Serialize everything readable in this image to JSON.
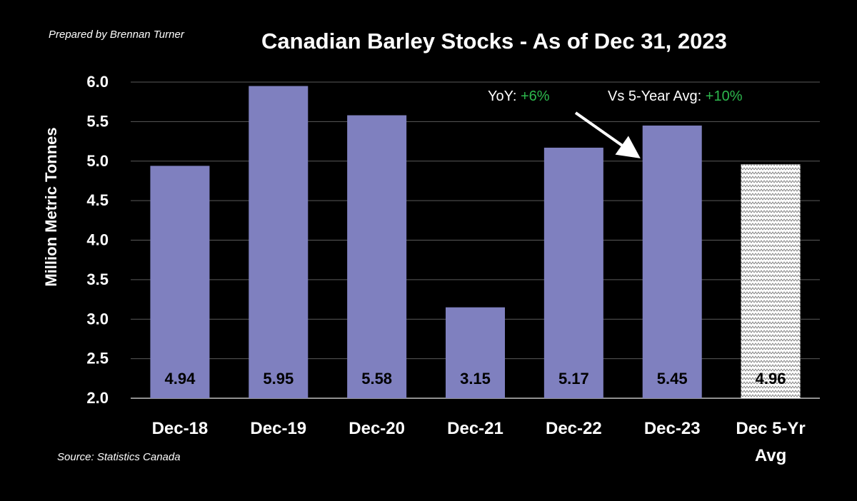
{
  "header": {
    "credit": "Prepared by Brennan Turner",
    "source": "Source: Statistics Canada"
  },
  "annotations": {
    "yoy_label": "YoY: ",
    "yoy_value": "+6%",
    "avg_label": "Vs 5-Year Avg: ",
    "avg_value": "+10%"
  },
  "colors": {
    "bar": "#7f80bf",
    "avg_bar_pattern": "#ffffff",
    "positive": "#2db84d",
    "background": "#000000"
  },
  "chart_data": {
    "type": "bar",
    "title": "Canadian Barley Stocks - As of Dec 31, 2023",
    "xlabel": "",
    "ylabel": "Million Metric Tonnes",
    "ylim": [
      2.0,
      6.0
    ],
    "yticks": [
      "2.0",
      "2.5",
      "3.0",
      "3.5",
      "4.0",
      "4.5",
      "5.0",
      "5.5",
      "6.0"
    ],
    "grid": true,
    "categories": [
      [
        "Dec-18"
      ],
      [
        "Dec-19"
      ],
      [
        "Dec-20"
      ],
      [
        "Dec-21"
      ],
      [
        "Dec-22"
      ],
      [
        "Dec-23"
      ],
      [
        "Dec 5-Yr",
        "Avg"
      ]
    ],
    "values": [
      4.94,
      5.95,
      5.58,
      3.15,
      5.17,
      5.45,
      4.96
    ],
    "data_labels": [
      "4.94",
      "5.95",
      "5.58",
      "3.15",
      "5.17",
      "5.45",
      "4.96"
    ],
    "hatched_bar_index": 6,
    "arrow_to_category_index": 5
  }
}
